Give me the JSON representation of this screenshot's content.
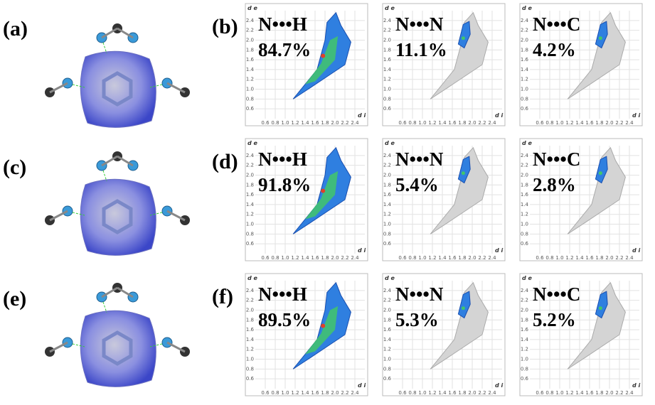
{
  "panels": [
    {
      "label": "(a)"
    },
    {
      "label": "(c)"
    },
    {
      "label": "(e)"
    }
  ],
  "plot_rows": [
    {
      "label": "(b)",
      "plots": [
        {
          "contact": "N•••H",
          "percent": "84.7%"
        },
        {
          "contact": "N•••N",
          "percent": "11.1%"
        },
        {
          "contact": "N•••C",
          "percent": "4.2%"
        }
      ]
    },
    {
      "label": "(d)",
      "plots": [
        {
          "contact": "N•••H",
          "percent": "91.8%"
        },
        {
          "contact": "N•••N",
          "percent": "5.4%"
        },
        {
          "contact": "N•••C",
          "percent": "2.8%"
        }
      ]
    },
    {
      "label": "(f)",
      "plots": [
        {
          "contact": "N•••H",
          "percent": "89.5%"
        },
        {
          "contact": "N•••N",
          "percent": "5.3%"
        },
        {
          "contact": "N•••C",
          "percent": "5.2%"
        }
      ]
    }
  ],
  "axes": {
    "x_label": "d i",
    "y_label": "d e",
    "xticks": [
      "0.6",
      "0.8",
      "1.0",
      "1.2",
      "1.4",
      "1.6",
      "1.8",
      "2.0",
      "2.2",
      "2.4"
    ],
    "yticks": [
      "0.6",
      "0.8",
      "1.0",
      "1.2",
      "1.4",
      "1.6",
      "1.8",
      "2.0",
      "2.2",
      "2.4"
    ]
  }
}
